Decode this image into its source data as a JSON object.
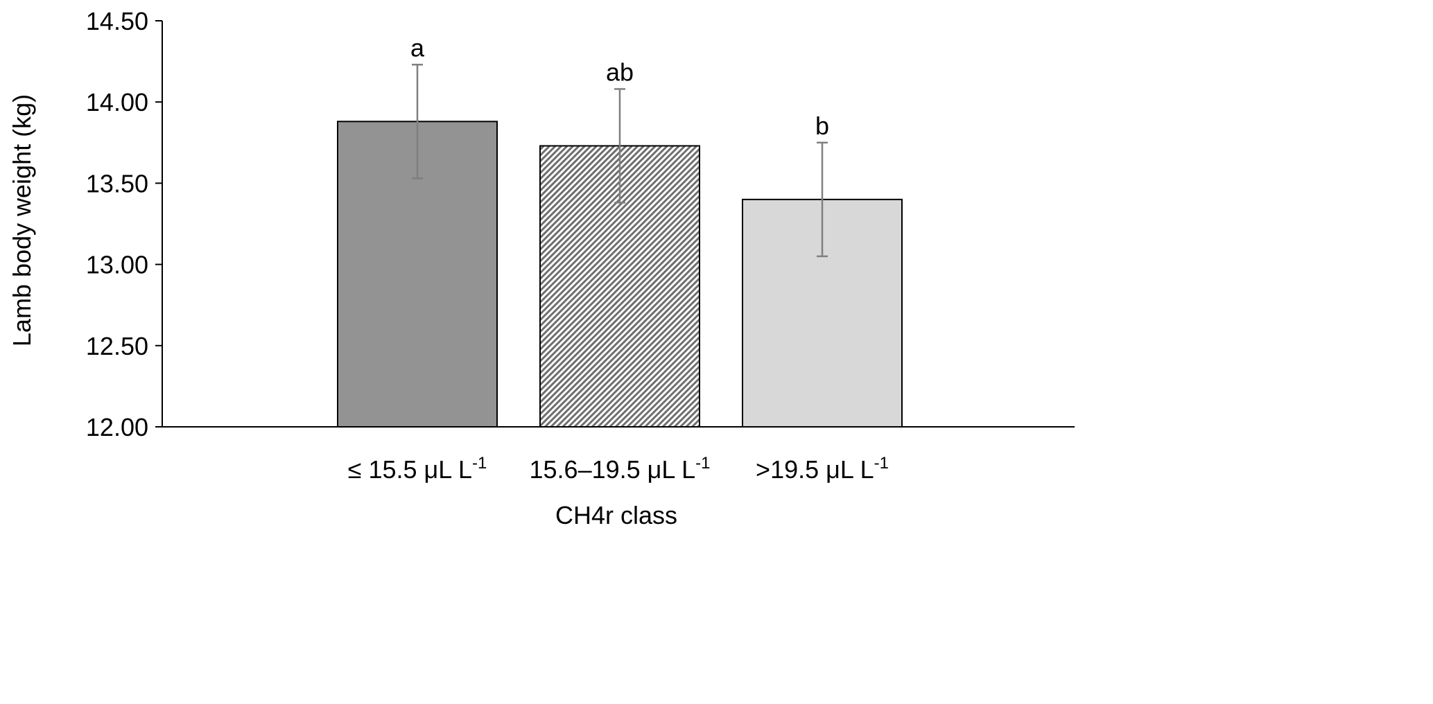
{
  "chart_data": {
    "type": "bar",
    "categories": [
      {
        "text": "≤ 15.5 μL L",
        "sup": "-1"
      },
      {
        "text": "15.6–19.5 μL L",
        "sup": "-1"
      },
      {
        "text": ">19.5 μL L",
        "sup": "-1"
      }
    ],
    "values": [
      13.88,
      13.73,
      13.4
    ],
    "errors": [
      0.35,
      0.35,
      0.35
    ],
    "significance_labels": [
      "a",
      "ab",
      "b"
    ],
    "fills": [
      "solid-dark-gray",
      "diagonal-hatch",
      "solid-light-gray"
    ],
    "colors": {
      "dark": "#939393",
      "hatch": "#6e6e6e",
      "light": "#d8d8d8",
      "error_bar": "#7f7f7f"
    },
    "xlabel": "CH4r class",
    "ylabel": "Lamb body weight (kg)",
    "ylim": [
      12.0,
      14.5
    ],
    "yticks": [
      "12.00",
      "12.50",
      "13.00",
      "13.50",
      "14.00",
      "14.50"
    ],
    "grid": false,
    "legend": "none"
  }
}
